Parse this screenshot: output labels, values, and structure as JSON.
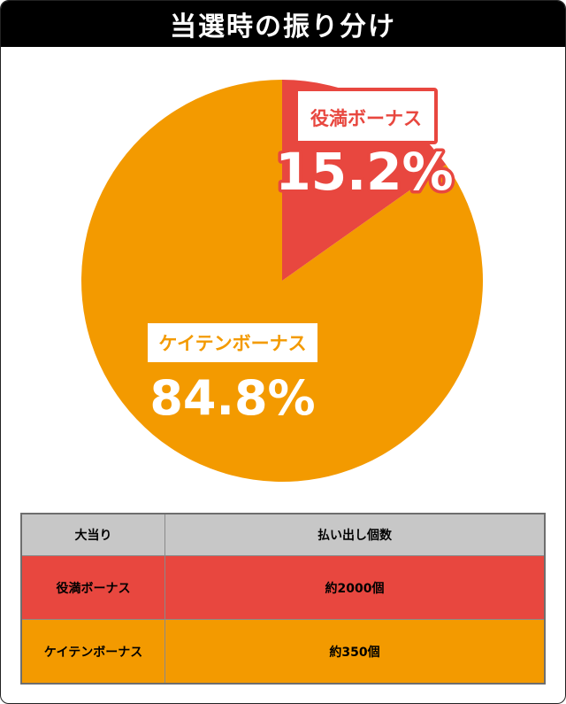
{
  "title": "当選時の振り分け",
  "colors": {
    "yakuman": "#e8473f",
    "keiten": "#f39a00",
    "header_bg": "#000000",
    "table_header": "#c7c7c7"
  },
  "chart_data": {
    "type": "pie",
    "slices": [
      {
        "label": "役満ボーナス",
        "value": 15.2,
        "display": "15.2%",
        "color": "#e8473f"
      },
      {
        "label": "ケイテンボーナス",
        "value": 84.8,
        "display": "84.8%",
        "color": "#f39a00"
      }
    ]
  },
  "table": {
    "headers": [
      "大当り",
      "払い出し個数"
    ],
    "rows": [
      {
        "cells": [
          "役満ボーナス",
          "約2000個"
        ],
        "color": "#e8473f"
      },
      {
        "cells": [
          "ケイテンボーナス",
          "約350個"
        ],
        "color": "#f39a00"
      }
    ]
  }
}
